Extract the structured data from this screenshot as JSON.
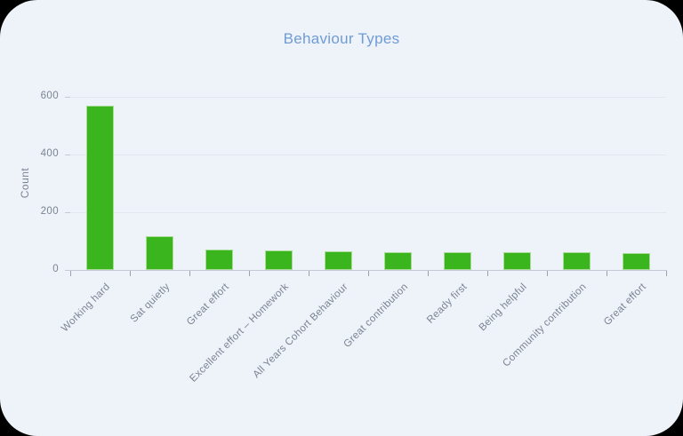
{
  "window": {
    "surface_color": "#eef2f9",
    "outside_color": "#000000"
  },
  "chart_data": {
    "type": "bar",
    "title": "Behaviour Types",
    "xlabel": "",
    "ylabel": "Count",
    "categories": [
      "Working hard",
      "Sat quietly",
      "Great effort",
      "Excellent effort – Homework",
      "All Years Cohort Behaviour",
      "Great contribution",
      "Ready first",
      "Being helpful",
      "Community contribution",
      "Great effort"
    ],
    "values": [
      568,
      116,
      71,
      67,
      64,
      62,
      62,
      61,
      60,
      57
    ],
    "yticks": [
      0,
      200,
      400,
      600
    ],
    "ylim": [
      0,
      652
    ],
    "grid": true,
    "legend": "none",
    "bar_color": "#3ab51e",
    "bar_border_color": "#a8dc97",
    "title_color": "#6f9cd6",
    "axis_text_color": "#7b8494",
    "grid_color": "#e2e7ef",
    "axis_line_color": "#c3cad6",
    "tick_color": "#9aa3ae"
  }
}
